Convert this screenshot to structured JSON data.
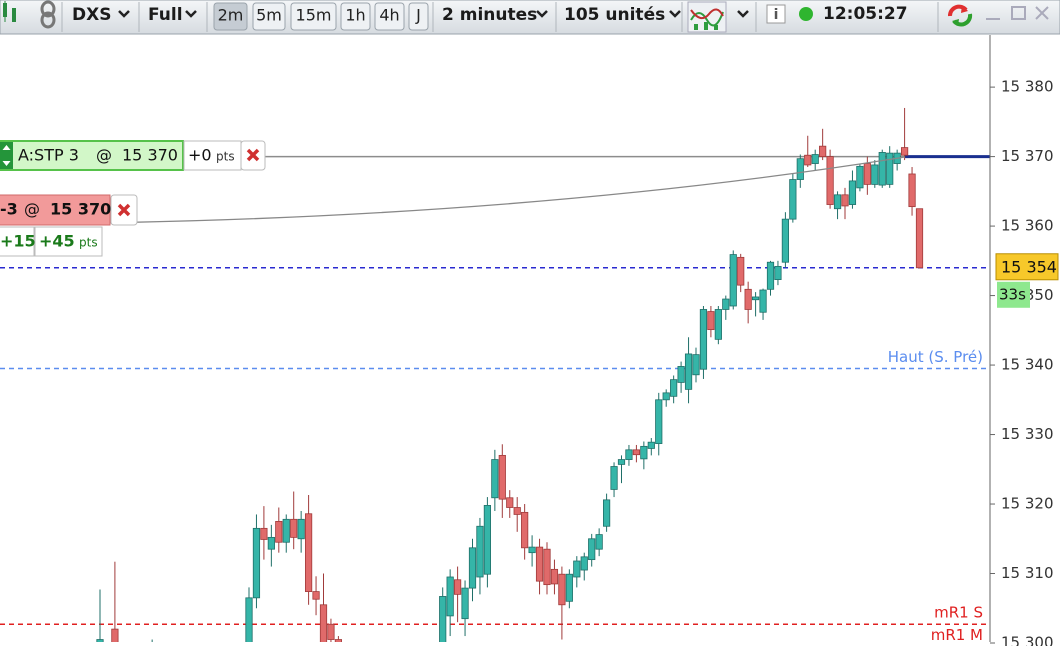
{
  "toolbar": {
    "instrument": "DXS",
    "view": "Full",
    "timeframes": [
      "2m",
      "5m",
      "15m",
      "1h",
      "4h",
      "J"
    ],
    "active_timeframe": 0,
    "period": "2 minutes",
    "units": "105 unités",
    "clock": "12:05:27"
  },
  "orders": {
    "stop": {
      "label": "A:STP 3",
      "at": "@",
      "price": "15 370",
      "pnl": "+0",
      "unit": "pts"
    },
    "position": {
      "qty": "-3",
      "at": "@",
      "price": "15 370"
    },
    "gains": {
      "a": "+15",
      "b": "+45",
      "unit": "pts"
    }
  },
  "chart_data": {
    "type": "candlestick",
    "up_color": "#35b5a8",
    "down_color": "#e06a6a",
    "ylim": [
      15300,
      15387.5
    ],
    "yticks": [
      {
        "value": 15380,
        "label": "15 380"
      },
      {
        "value": 15370,
        "label": "15 370"
      },
      {
        "value": 15360,
        "label": "15 360"
      },
      {
        "value": 15350,
        "label": "15 350"
      },
      {
        "value": 15340,
        "label": "15 340"
      },
      {
        "value": 15330,
        "label": "15 330"
      },
      {
        "value": 15320,
        "label": "15 320"
      },
      {
        "value": 15310,
        "label": "15 310"
      },
      {
        "value": 15300,
        "label": "15 300"
      }
    ],
    "open": [
      15299,
      null,
      15302,
      null,
      null,
      null,
      null,
      15299.5,
      null,
      null,
      null,
      null,
      null,
      null,
      null,
      null,
      null,
      null,
      null,
      null,
      15298,
      15306.5,
      15316.5,
      15313.5,
      15317.5,
      15314.5,
      15317.8,
      15315,
      15318.6,
      15307.4,
      15305.5,
      15302.7,
      15300.5,
      null,
      null,
      null,
      null,
      null,
      null,
      null,
      null,
      null,
      null,
      null,
      null,
      null,
      15298,
      15303.9,
      15309.1,
      15303.5,
      15307.9,
      15309.5,
      15309.9,
      15320.9,
      15327,
      15320.9,
      15319.5,
      15318.8,
      15313,
      15313.8,
      15313.5,
      15310.6,
      15309.9,
      15306,
      15309.5,
      15310.5,
      15312,
      15313.5,
      15316.8,
      15322.1,
      15325.7,
      15326.4,
      15327.8,
      15326.5,
      15328,
      15328.7,
      15335,
      15335.5,
      15337.5,
      15336.5,
      15338.6,
      15339.4,
      15347.7,
      15343.7,
      15348,
      15348.5,
      15355.5,
      15350.9,
      15349.4,
      15347.6,
      15350.9,
      15352.3,
      15354.8,
      15361,
      15366.7,
      15370.2,
      15369,
      15371.5,
      15370,
      15362.5,
      15364.5,
      15363.1,
      15365.5,
      15369,
      15366,
      15365.9,
      15366,
      15369,
      15371.3,
      15367.5,
      15362.5
    ],
    "high": [
      15307.7,
      null,
      15311.7,
      null,
      null,
      null,
      null,
      15300.5,
      null,
      null,
      null,
      null,
      null,
      null,
      null,
      null,
      null,
      null,
      null,
      null,
      15308,
      15318.5,
      15319.7,
      15317,
      15319.5,
      15318.5,
      15321.8,
      15319,
      15321.3,
      15309.6,
      15310,
      15303.5,
      15301,
      null,
      null,
      null,
      null,
      null,
      null,
      null,
      null,
      null,
      null,
      null,
      null,
      null,
      15308,
      15310.6,
      15311,
      15309,
      15315,
      15318,
      15321,
      15327.8,
      15328.6,
      15322,
      15321,
      15320,
      15315.5,
      15315,
      15314.5,
      15312,
      15311,
      15310.6,
      15312.5,
      15313,
      15315.7,
      15316.5,
      15321.5,
      15326,
      15327,
      15328.5,
      15328.5,
      15329,
      15329.5,
      15336,
      15336.5,
      15338.5,
      15340.5,
      15344,
      15342.5,
      15348.5,
      15348.5,
      15348.5,
      15350,
      15356.5,
      15356,
      15352,
      15350.5,
      15351,
      15355,
      15355,
      15362,
      15367.5,
      15370.3,
      15373,
      15371,
      15374,
      15371,
      15365,
      15365.5,
      15368,
      15369,
      15370,
      15369.5,
      15371,
      15371.5,
      15371,
      15377,
      15368.5,
      15362.5
    ],
    "low": [
      15297,
      null,
      15296,
      null,
      null,
      null,
      null,
      15298,
      null,
      null,
      null,
      null,
      null,
      null,
      null,
      null,
      null,
      null,
      null,
      null,
      15296,
      15305,
      15312,
      15311,
      15313,
      15313,
      15313.5,
      15313,
      15305.5,
      15304,
      15298,
      15298,
      15298,
      null,
      null,
      null,
      null,
      null,
      null,
      null,
      null,
      null,
      null,
      null,
      null,
      null,
      15295,
      15301,
      15303,
      15301,
      15306,
      15307,
      15308,
      15319,
      15318,
      15318,
      15316,
      15312,
      15311,
      15307,
      15307,
      15307,
      15300.5,
      15305,
      15308,
      15309,
      15311,
      15312.5,
      15316,
      15321,
      15323,
      15325.5,
      15326,
      15325,
      15327,
      15327,
      15334,
      15334.5,
      15336,
      15334.5,
      15337.5,
      15338,
      15344,
      15343,
      15346.5,
      15348,
      15350.5,
      15346,
      15347,
      15346.5,
      15350,
      15351.5,
      15354,
      15360.5,
      15365.5,
      15368.5,
      15368,
      15369.5,
      15362.5,
      15361,
      15361,
      15362.5,
      15365,
      15364.5,
      15365.5,
      15365.5,
      15365.5,
      15368,
      15369.5,
      15361.5,
      15353.9
    ],
    "close": [
      15300.5,
      null,
      15299,
      null,
      null,
      null,
      null,
      15300,
      null,
      null,
      null,
      null,
      null,
      null,
      null,
      null,
      null,
      null,
      null,
      null,
      15306.5,
      15316.5,
      15314.9,
      15315.2,
      15314.5,
      15317.8,
      15315.2,
      15317.8,
      15307.4,
      15306.3,
      15300,
      15300.5,
      15299.5,
      null,
      null,
      null,
      null,
      null,
      null,
      null,
      null,
      null,
      null,
      null,
      null,
      null,
      15306.7,
      15309.5,
      15307,
      15307.9,
      15313.7,
      15316.8,
      15319.8,
      15326.4,
      15320.7,
      15319.5,
      15318.5,
      15313.7,
      15313.8,
      15308.9,
      15308.4,
      15308.5,
      15305.5,
      15309.9,
      15311.8,
      15312.4,
      15315,
      15315.6,
      15320.6,
      15325.4,
      15326.4,
      15327.8,
      15327.1,
      15328.3,
      15328.9,
      15335,
      15336,
      15337.9,
      15339.8,
      15341.6,
      15341.5,
      15348,
      15345.1,
      15348,
      15349.5,
      15355.9,
      15351.5,
      15348,
      15349.8,
      15350.8,
      15354.8,
      15354.2,
      15361,
      15366.7,
      15369.7,
      15368.8,
      15370.3,
      15370,
      15363.1,
      15364.5,
      15362.9,
      15366.5,
      15368.6,
      15366,
      15368.8,
      15370.6,
      15370.5,
      15370.5,
      15370.2,
      15362.8,
      15354
    ],
    "levels": [
      {
        "value": 15370,
        "color": "#8c8c8c",
        "position_color": "#1a2f8f"
      },
      {
        "value": 15354,
        "color": "#2a2ad0",
        "dash": true
      },
      {
        "value": 15339.5,
        "label": "Haut (S. Pré)",
        "color": "#5b8def",
        "dash": true
      },
      {
        "value": 15302.7,
        "label": "mR1 S",
        "color": "#e02020",
        "dash": true
      },
      {
        "value": 15299.5,
        "label": "mR1 M",
        "color": "#e02020",
        "dash": true
      }
    ],
    "last_price": {
      "value": 15354,
      "label": "15 354"
    },
    "countdown": "33s"
  }
}
